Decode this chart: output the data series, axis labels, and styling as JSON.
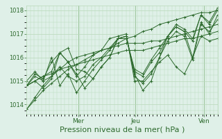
{
  "bg_color": "#dff0e8",
  "plot_bg_color": "#dff0e8",
  "line_color": "#2d6a2d",
  "grid_color": "#b8d8b8",
  "tick_color": "#2d6a2d",
  "label_color": "#2d6a2d",
  "xlabel": "Pression niveau de la mer( hPa )",
  "xlabel_fontsize": 8,
  "ylim": [
    1013.6,
    1018.2
  ],
  "yticks": [
    1014,
    1015,
    1016,
    1017,
    1018
  ],
  "xtick_positions": [
    0.27,
    0.57,
    0.93
  ],
  "xtick_labels": [
    "Mer",
    "Jeu",
    "Ven"
  ],
  "series": [
    [
      1013.8,
      1014.2,
      1014.6,
      1014.9,
      1015.2,
      1015.5,
      1015.7,
      1015.9,
      1016.1,
      1016.3,
      1016.4,
      1016.6,
      1016.8,
      1016.9,
      1017.1,
      1017.2,
      1017.4,
      1017.5,
      1017.6,
      1017.7,
      1017.8,
      1017.9,
      1017.9,
      1018.0
    ],
    [
      1013.8,
      1014.3,
      1014.8,
      1015.2,
      1015.5,
      1015.8,
      1016.0,
      1016.1,
      1016.2,
      1016.3,
      1016.4,
      1016.5,
      1016.6,
      1016.6,
      1016.6,
      1016.7,
      1016.7,
      1016.8,
      1016.9,
      1017.0,
      1017.1,
      1017.2,
      1017.3,
      1017.4
    ],
    [
      1014.8,
      1015.0,
      1015.2,
      1015.3,
      1015.5,
      1015.6,
      1015.7,
      1015.8,
      1015.9,
      1016.0,
      1016.1,
      1016.2,
      1016.3,
      1016.3,
      1016.3,
      1016.4,
      1016.5,
      1016.6,
      1016.7,
      1016.8,
      1016.8,
      1016.9,
      1017.0,
      1017.1
    ],
    [
      1014.8,
      1015.0,
      1015.2,
      1015.4,
      1016.2,
      1015.8,
      1015.2,
      1015.6,
      1016.1,
      1016.3,
      1016.8,
      1016.9,
      1017.0,
      1015.0,
      1015.0,
      1015.4,
      1015.8,
      1016.1,
      1015.6,
      1015.3,
      1016.0,
      1016.9,
      1016.7,
      1016.8
    ],
    [
      1014.8,
      1015.0,
      1014.7,
      1015.1,
      1016.2,
      1015.8,
      1015.3,
      1014.7,
      1015.1,
      1015.6,
      1016.0,
      1016.8,
      1016.9,
      1015.2,
      1014.9,
      1015.3,
      1016.0,
      1016.7,
      1017.1,
      1016.9,
      1015.9,
      1017.4,
      1017.1,
      1017.6
    ],
    [
      1014.8,
      1015.3,
      1015.1,
      1015.8,
      1016.2,
      1016.4,
      1015.5,
      1015.4,
      1015.1,
      1015.6,
      1016.0,
      1016.8,
      1016.9,
      1015.3,
      1014.6,
      1015.0,
      1016.0,
      1016.9,
      1017.3,
      1017.1,
      1016.0,
      1017.5,
      1017.0,
      1017.8
    ],
    [
      1014.8,
      1015.2,
      1015.0,
      1016.0,
      1014.8,
      1015.3,
      1014.5,
      1015.0,
      1015.5,
      1015.9,
      1016.3,
      1016.8,
      1016.9,
      1015.4,
      1015.2,
      1015.8,
      1016.2,
      1016.9,
      1017.3,
      1017.1,
      1016.7,
      1017.8,
      1017.4,
      1018.0
    ],
    [
      1015.0,
      1015.4,
      1015.0,
      1015.2,
      1015.6,
      1015.2,
      1015.0,
      1015.2,
      1015.7,
      1016.0,
      1016.4,
      1016.8,
      1016.8,
      1015.5,
      1015.3,
      1015.9,
      1016.4,
      1016.9,
      1017.4,
      1017.2,
      1016.8,
      1017.8,
      1017.5,
      1018.1
    ]
  ]
}
